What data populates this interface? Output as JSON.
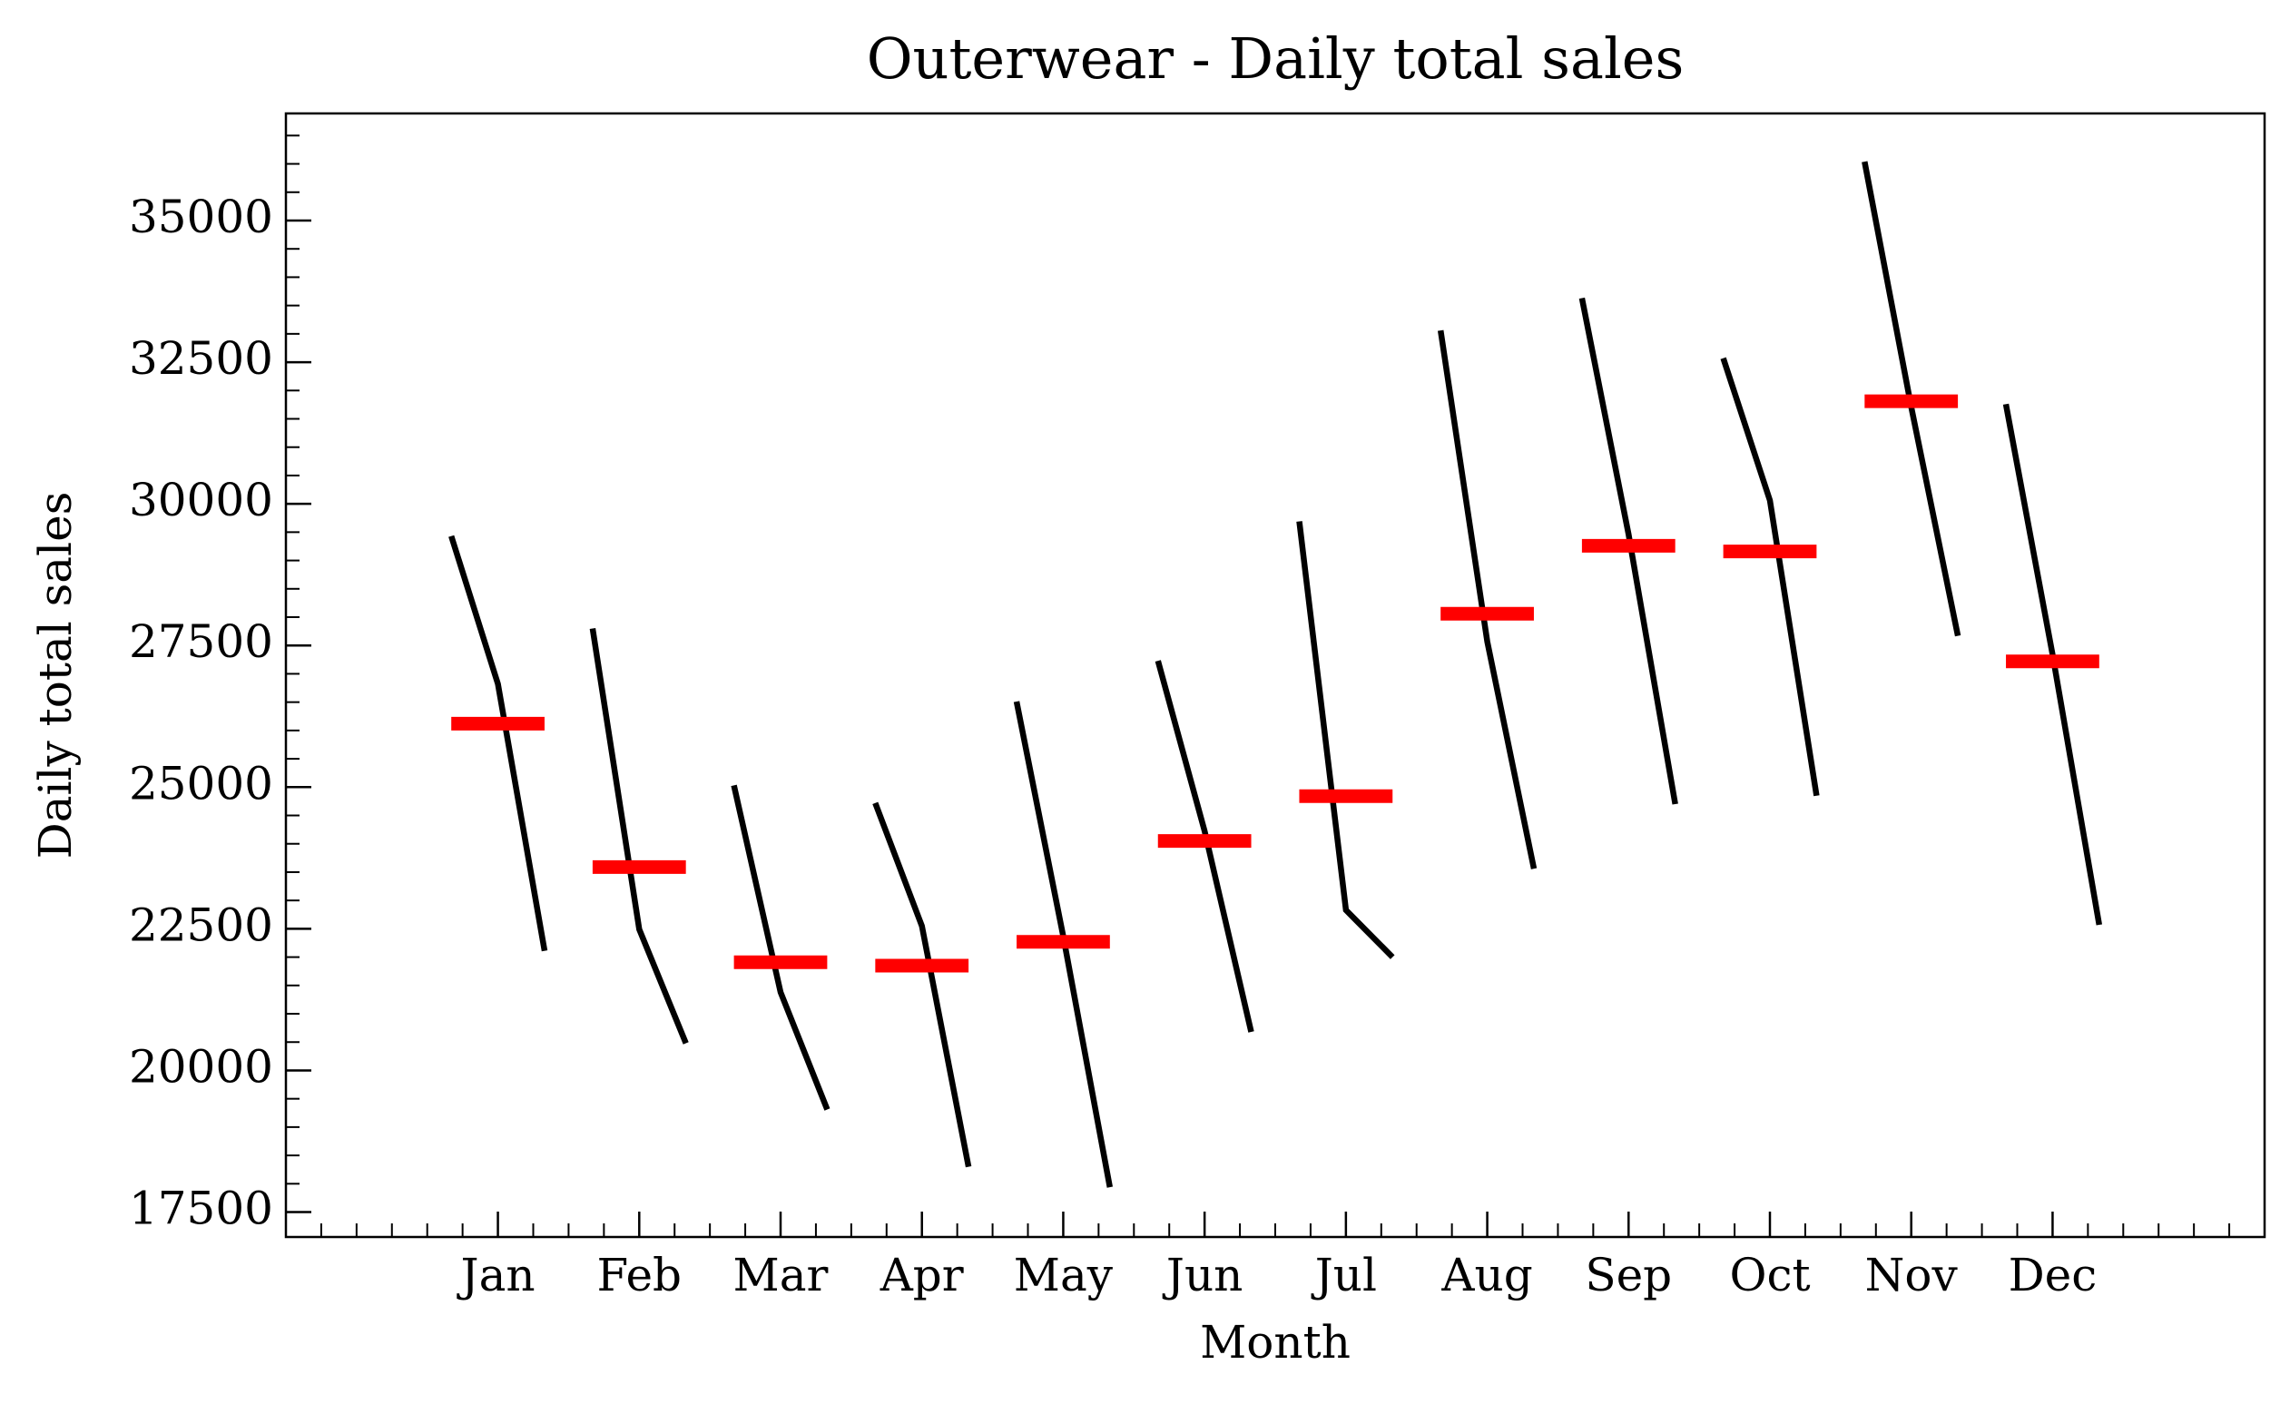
{
  "chart_data": {
    "type": "month_plot",
    "title": "Outerwear - Daily total sales",
    "xlabel": "Month",
    "ylabel": "Daily total sales",
    "categories": [
      "Jan",
      "Feb",
      "Mar",
      "Apr",
      "May",
      "Jun",
      "Jul",
      "Aug",
      "Sep",
      "Oct",
      "Nov",
      "Dec"
    ],
    "values": [
      [
        29430,
        26820,
        22110
      ],
      [
        27800,
        22490,
        20480
      ],
      [
        25030,
        21380,
        19310
      ],
      [
        24720,
        22550,
        18300
      ],
      [
        26510,
        22370,
        17940
      ],
      [
        27230,
        24230,
        20680
      ],
      [
        29690,
        22830,
        22000
      ],
      [
        33060,
        27570,
        23560
      ],
      [
        33630,
        29460,
        24700
      ],
      [
        32570,
        30060,
        24850
      ],
      [
        36040,
        31710,
        27670
      ],
      [
        31760,
        27340,
        22570
      ]
    ],
    "means": [
      26120,
      23590,
      21910,
      21850,
      22270,
      24050,
      24840,
      28060,
      29260,
      29160,
      31810,
      27220
    ],
    "color": "#000000",
    "mean_color": "#ff0000",
    "xlim": [
      -1.5,
      12.5
    ],
    "ylim": [
      17060,
      36890
    ],
    "yticks": [
      17500,
      20000,
      22500,
      25000,
      27500,
      30000,
      32500,
      35000
    ]
  }
}
